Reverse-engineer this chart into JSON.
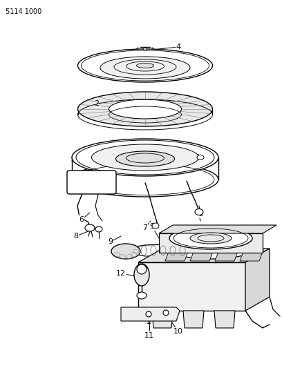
{
  "part_number": "5114 1000",
  "bg": "#ffffff",
  "lc": "#000000",
  "fig_w": 4.08,
  "fig_h": 5.33,
  "dpi": 100
}
